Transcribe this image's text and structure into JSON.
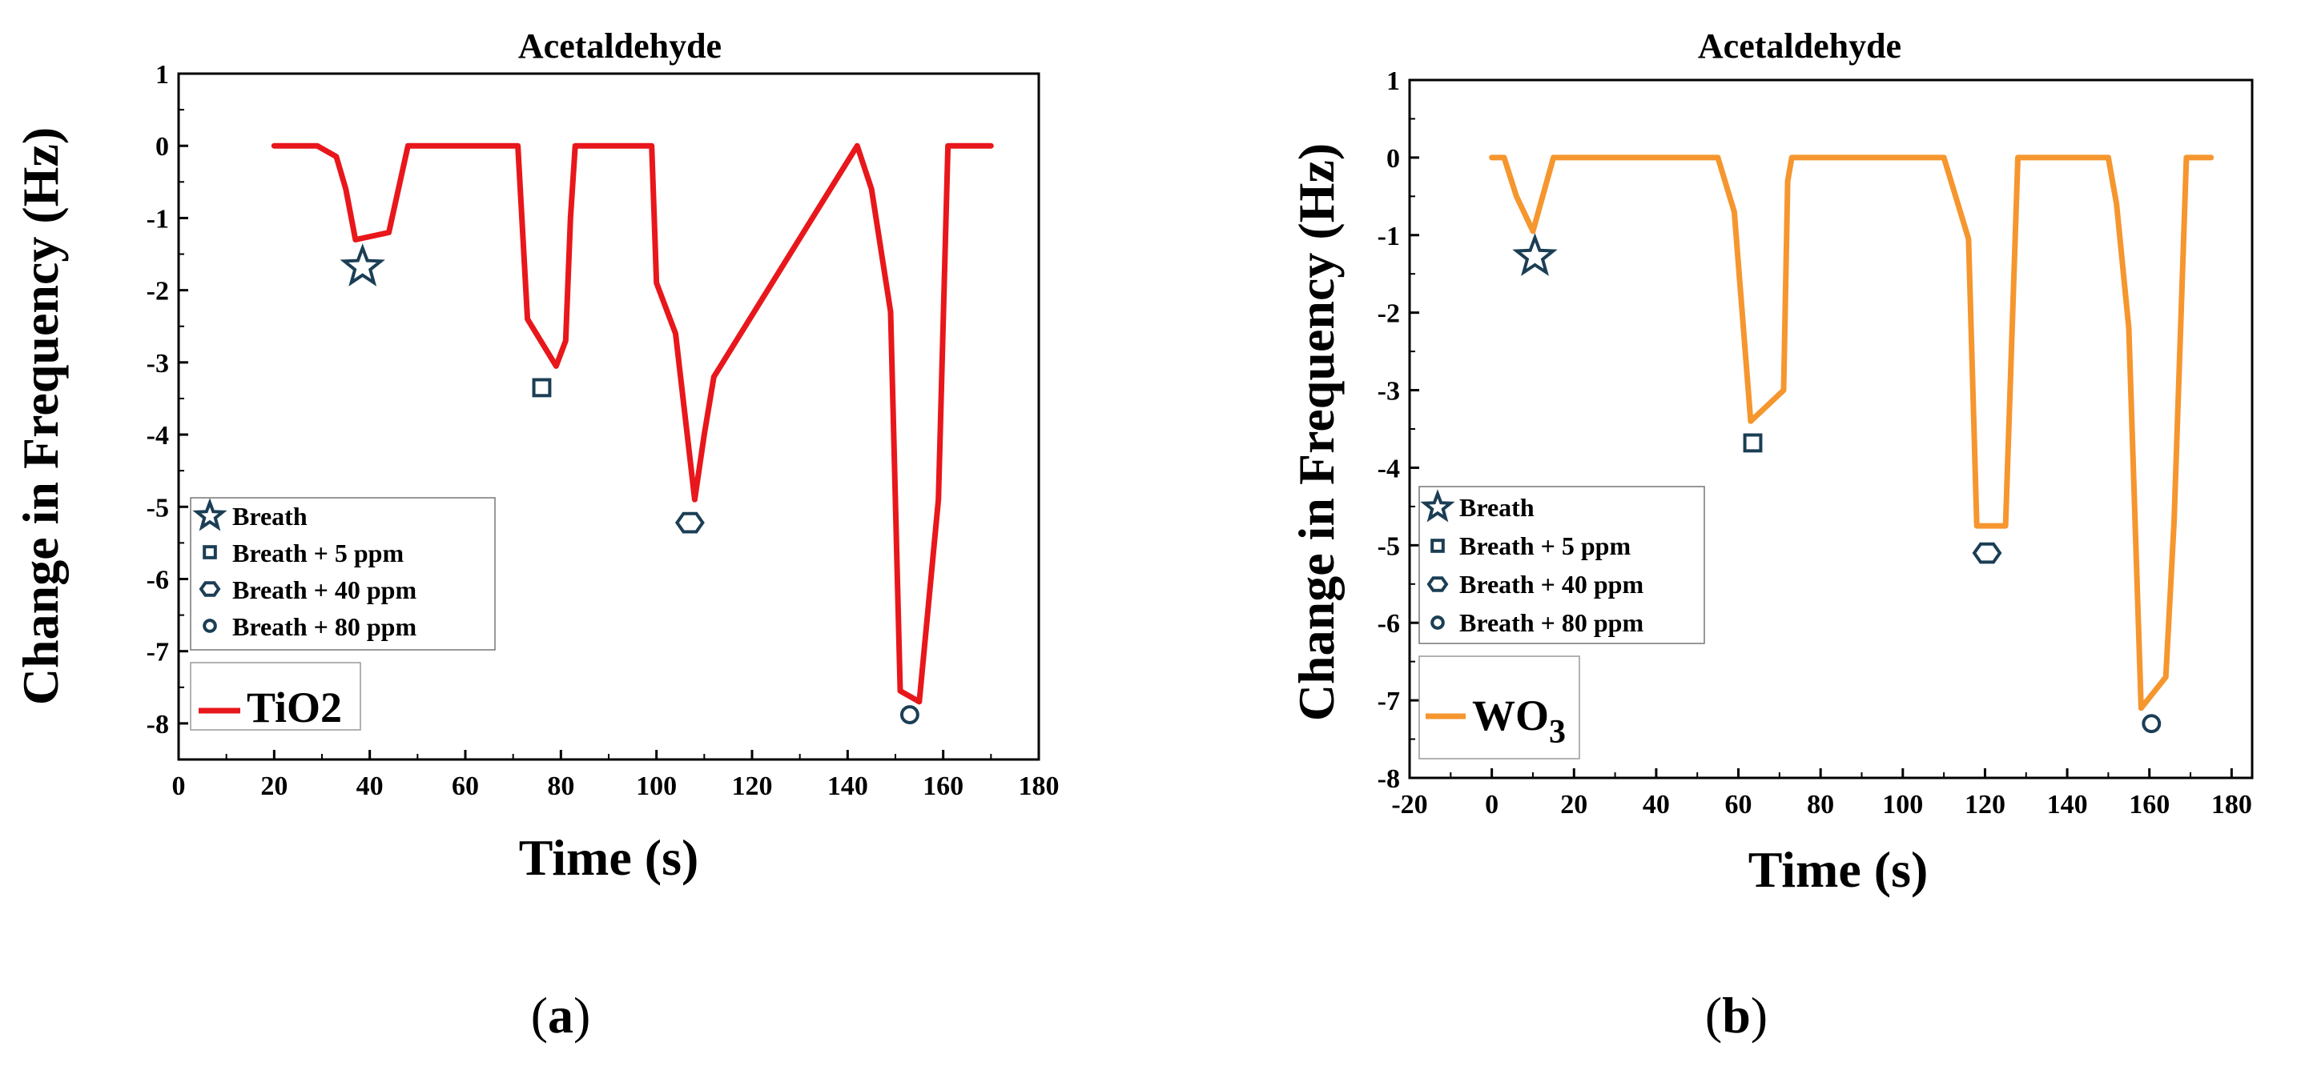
{
  "panels": [
    {
      "caption": {
        "open": "(",
        "letter": "a",
        "close": ")"
      },
      "material": {
        "text": "TiO2",
        "sub": ""
      },
      "legend": [
        "Breath",
        "Breath + 5 ppm",
        "Breath + 40 ppm",
        "Breath + 80 ppm"
      ],
      "chart_data": {
        "type": "line",
        "title": "Acetaldehyde",
        "xlabel": "Time (s)",
        "ylabel": "Change in Frequency (Hz)",
        "xlim": [
          0,
          180
        ],
        "ylim": [
          -8.5,
          1
        ],
        "xticks": [
          0,
          20,
          40,
          60,
          80,
          100,
          120,
          140,
          160,
          180
        ],
        "yticks": [
          1,
          0,
          -1,
          -2,
          -3,
          -4,
          -5,
          -6,
          -7,
          -8
        ],
        "series": [
          {
            "name": "TiO2",
            "color": "#e8171b",
            "x": [
              20,
              29,
              33,
              35,
              37,
              44,
              48,
              71,
              73,
              79,
              81,
              82,
              83,
              99,
              100,
              104,
              108,
              110,
              112,
              142,
              145,
              149,
              151,
              155,
              159,
              161,
              170
            ],
            "y": [
              0,
              0,
              -0.15,
              -0.6,
              -1.3,
              -1.2,
              0,
              0,
              -2.4,
              -3.05,
              -2.7,
              -1.0,
              0,
              0,
              -1.9,
              -2.6,
              -4.9,
              -4.0,
              -3.2,
              0,
              -0.6,
              -2.3,
              -7.55,
              -7.7,
              -4.9,
              0,
              0
            ]
          }
        ],
        "markers": [
          {
            "label": "Breath",
            "shape": "star",
            "x": 38.5,
            "y": -1.68
          },
          {
            "label": "Breath + 5 ppm",
            "shape": "square",
            "x": 76,
            "y": -3.35
          },
          {
            "label": "Breath + 40 ppm",
            "shape": "hexagon",
            "x": 107,
            "y": -5.22
          },
          {
            "label": "Breath + 80 ppm",
            "shape": "circle",
            "x": 153,
            "y": -7.88
          }
        ],
        "marker_color": "#1b3e55",
        "legend_position": "lower-left"
      }
    },
    {
      "caption": {
        "open": "(",
        "letter": "b",
        "close": ")"
      },
      "material": {
        "text": "WO",
        "sub": "3"
      },
      "legend": [
        "Breath",
        "Breath + 5 ppm",
        "Breath + 40 ppm",
        "Breath + 80 ppm"
      ],
      "chart_data": {
        "type": "line",
        "title": "Acetaldehyde",
        "xlabel": "Time (s)",
        "ylabel": "Change in Frequency (Hz)",
        "xlim": [
          -20,
          185
        ],
        "ylim": [
          -8,
          1
        ],
        "xticks": [
          -20,
          0,
          20,
          40,
          60,
          80,
          100,
          120,
          140,
          160,
          180
        ],
        "yticks": [
          1,
          0,
          -1,
          -2,
          -3,
          -4,
          -5,
          -6,
          -7,
          -8
        ],
        "series": [
          {
            "name": "WO3",
            "color": "#f5962e",
            "x": [
              0,
              3,
              6,
              10,
              15,
              55,
              59,
              63,
              71,
              72,
              73,
              110,
              116,
              118,
              125,
              128,
              150,
              152,
              155,
              158,
              164,
              166,
              169,
              175
            ],
            "y": [
              0,
              0,
              -0.5,
              -0.95,
              0,
              0,
              -0.7,
              -3.4,
              -3.0,
              -0.3,
              0,
              0,
              -1.05,
              -4.75,
              -4.75,
              0,
              0,
              -0.6,
              -2.2,
              -7.1,
              -6.7,
              -4.7,
              0,
              0
            ]
          }
        ],
        "markers": [
          {
            "label": "Breath",
            "shape": "star",
            "x": 10.5,
            "y": -1.28
          },
          {
            "label": "Breath + 5 ppm",
            "shape": "square",
            "x": 63.5,
            "y": -3.68
          },
          {
            "label": "Breath + 40 ppm",
            "shape": "hexagon",
            "x": 120.5,
            "y": -5.1
          },
          {
            "label": "Breath + 80 ppm",
            "shape": "circle",
            "x": 160.5,
            "y": -7.3
          }
        ],
        "marker_color": "#1b3e55",
        "legend_position": "lower-left"
      }
    }
  ]
}
